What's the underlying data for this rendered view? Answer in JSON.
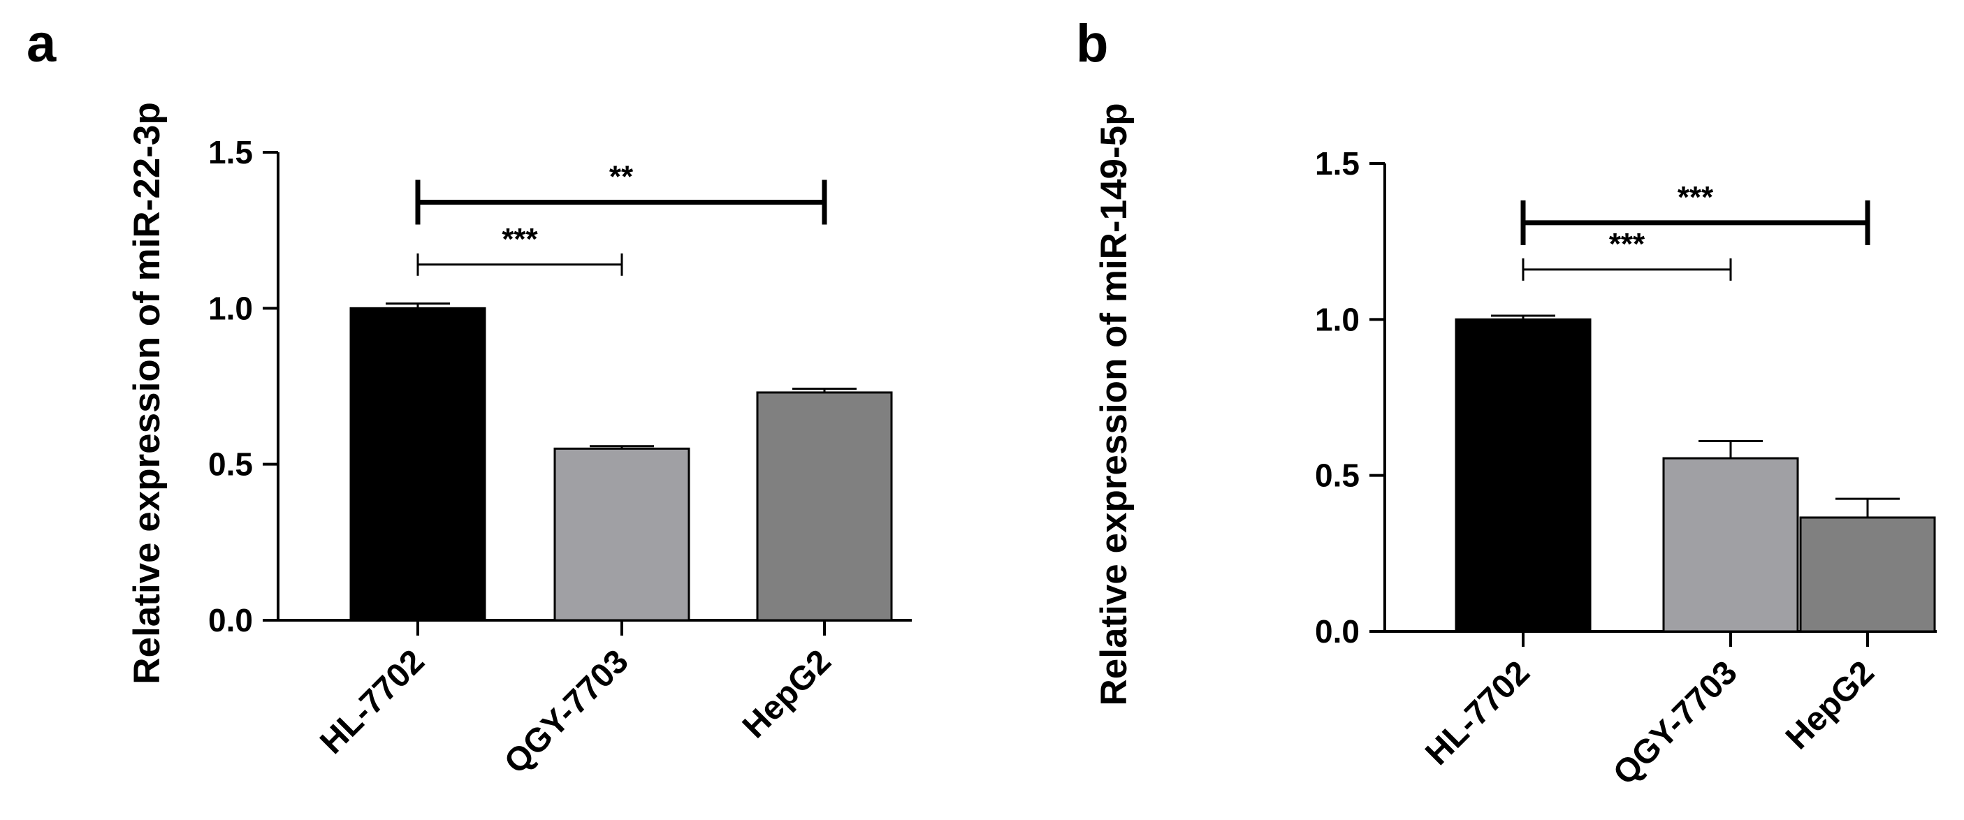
{
  "chart_data": [
    {
      "panel": "a",
      "type": "bar",
      "ylabel": "Relative expression  of miR-22-3p",
      "xlabel": "",
      "categories": [
        "HL-7702",
        "QGY-7703",
        "HepG2"
      ],
      "values": [
        1.0,
        0.55,
        0.73
      ],
      "errors": [
        0.015,
        0.008,
        0.012
      ],
      "bar_colors": [
        "#000000",
        "#a0a0a4",
        "#808080"
      ],
      "ylim": [
        0,
        1.5
      ],
      "yticks": [
        "0.0",
        "0.5",
        "1.0",
        "1.5"
      ],
      "grid": false,
      "significance": [
        {
          "from": "HL-7702",
          "to": "QGY-7703",
          "label": "***",
          "y": 1.14
        },
        {
          "from": "HL-7702",
          "to": "HepG2",
          "label": "**",
          "y": 1.34
        }
      ]
    },
    {
      "panel": "b",
      "type": "bar",
      "ylabel": "Relative expression  of miR-149-5p",
      "xlabel": "",
      "categories": [
        "HL-7702",
        "QGY-7703",
        "HepG2"
      ],
      "values": [
        1.0,
        0.555,
        0.365
      ],
      "errors": [
        0.012,
        0.055,
        0.06
      ],
      "bar_colors": [
        "#000000",
        "#a0a0a4",
        "#808080"
      ],
      "ylim": [
        0,
        1.5
      ],
      "yticks": [
        "0.0",
        "0.5",
        "1.0",
        "1.5"
      ],
      "grid": false,
      "significance": [
        {
          "from": "HL-7702",
          "to": "QGY-7703",
          "label": "***",
          "y": 1.16
        },
        {
          "from": "HL-7702",
          "to": "HepG2",
          "label": "***",
          "y": 1.31
        }
      ]
    }
  ]
}
